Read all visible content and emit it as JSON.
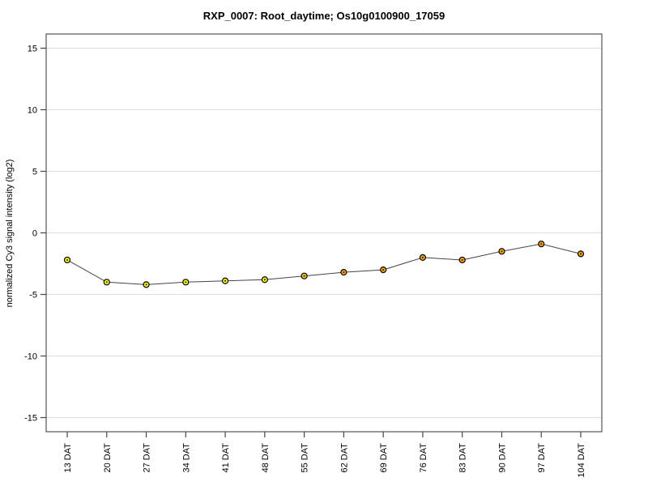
{
  "chart_data": {
    "type": "line",
    "title": "RXP_0007: Root_daytime; Os10g0100900_17059",
    "ylabel": "normalized Cy3 signal intensity (log2)",
    "xlabel": "",
    "categories": [
      "13 DAT",
      "20 DAT",
      "27 DAT",
      "34 DAT",
      "41 DAT",
      "48 DAT",
      "55 DAT",
      "62 DAT",
      "69 DAT",
      "76 DAT",
      "83 DAT",
      "90 DAT",
      "97 DAT",
      "104 DAT"
    ],
    "values": [
      -2.2,
      -4.0,
      -4.2,
      -4.0,
      -3.9,
      -3.8,
      -3.5,
      -3.2,
      -3.0,
      -2.0,
      -2.2,
      -1.5,
      -0.9,
      -1.7
    ],
    "point_colors": [
      "#ffff00",
      "#ffff00",
      "#ffff00",
      "#ffff00",
      "#ffff00",
      "#ffff00",
      "#ffc800",
      "#ffa500",
      "#ffa500",
      "#ffa500",
      "#ffa500",
      "#ffa500",
      "#ffa500",
      "#ffa500"
    ],
    "yticks": [
      15,
      10,
      5,
      0,
      -5,
      -10,
      -15
    ],
    "ylim": [
      -16.15,
      16.15
    ],
    "grid": "horizontal-only",
    "legend": "none",
    "colors": {
      "line": "#444444",
      "marker_stroke": "#000000",
      "marker_center": "#333333",
      "grid": "#dddddd",
      "box": "#555555",
      "tick": "#444444",
      "text": "#000000",
      "background": "#ffffff"
    }
  }
}
